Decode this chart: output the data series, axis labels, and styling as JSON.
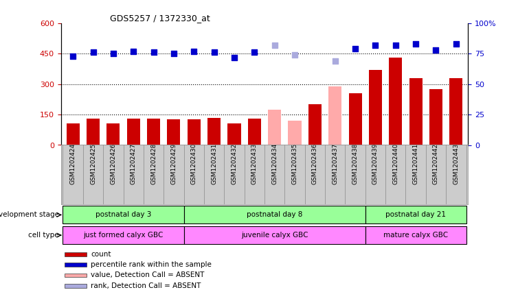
{
  "title": "GDS5257 / 1372330_at",
  "samples": [
    "GSM1202424",
    "GSM1202425",
    "GSM1202426",
    "GSM1202427",
    "GSM1202428",
    "GSM1202429",
    "GSM1202430",
    "GSM1202431",
    "GSM1202432",
    "GSM1202433",
    "GSM1202434",
    "GSM1202435",
    "GSM1202436",
    "GSM1202437",
    "GSM1202438",
    "GSM1202439",
    "GSM1202440",
    "GSM1202441",
    "GSM1202442",
    "GSM1202443"
  ],
  "counts": [
    105,
    130,
    105,
    130,
    130,
    125,
    125,
    135,
    108,
    130,
    null,
    null,
    200,
    null,
    255,
    370,
    430,
    330,
    275,
    330
  ],
  "counts_absent": [
    null,
    null,
    null,
    null,
    null,
    null,
    null,
    null,
    null,
    null,
    175,
    120,
    null,
    290,
    null,
    null,
    null,
    null,
    null,
    null
  ],
  "percentile_ranks": [
    73,
    76,
    75,
    77,
    76,
    75,
    77,
    76,
    72,
    76,
    null,
    null,
    null,
    null,
    79,
    82,
    82,
    83,
    78,
    83
  ],
  "percentile_ranks_absent": [
    null,
    null,
    null,
    null,
    null,
    null,
    null,
    null,
    null,
    null,
    82,
    74,
    null,
    69,
    null,
    null,
    null,
    null,
    null,
    null
  ],
  "bar_color_present": "#cc0000",
  "bar_color_absent": "#ffaaaa",
  "dot_color_present": "#0000cc",
  "dot_color_absent": "#aaaadd",
  "ylim_left": [
    0,
    600
  ],
  "ylim_right": [
    0,
    100
  ],
  "yticks_left": [
    0,
    150,
    300,
    450,
    600
  ],
  "yticks_right": [
    0,
    25,
    50,
    75,
    100
  ],
  "groups": [
    {
      "label": "postnatal day 3",
      "start": 0,
      "end": 5
    },
    {
      "label": "postnatal day 8",
      "start": 6,
      "end": 14
    },
    {
      "label": "postnatal day 21",
      "start": 15,
      "end": 19
    }
  ],
  "cell_types": [
    {
      "label": "just formed calyx GBC",
      "start": 0,
      "end": 5
    },
    {
      "label": "juvenile calyx GBC",
      "start": 6,
      "end": 14
    },
    {
      "label": "mature calyx GBC",
      "start": 15,
      "end": 19
    }
  ],
  "dev_stage_label": "development stage",
  "cell_type_label": "cell type",
  "group_color": "#99ff99",
  "cell_color": "#ff88ff",
  "legend_items": [
    {
      "label": "count",
      "color": "#cc0000"
    },
    {
      "label": "percentile rank within the sample",
      "color": "#0000cc"
    },
    {
      "label": "value, Detection Call = ABSENT",
      "color": "#ffaaaa"
    },
    {
      "label": "rank, Detection Call = ABSENT",
      "color": "#aaaadd"
    }
  ],
  "background_color": "#ffffff",
  "xtick_bg": "#cccccc"
}
